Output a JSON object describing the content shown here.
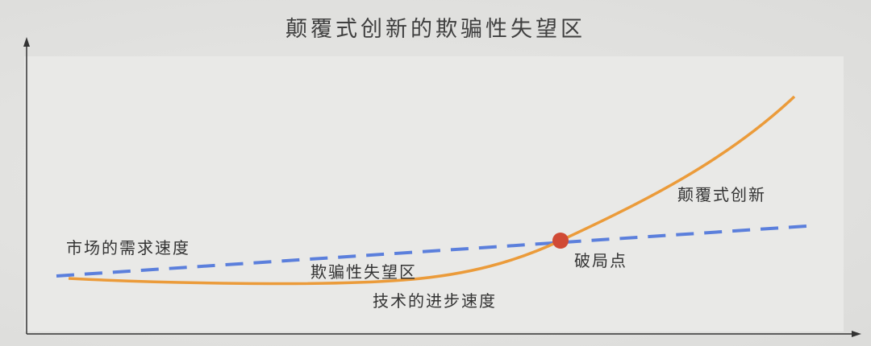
{
  "title": "颠覆式创新的欺骗性失望区",
  "labels": {
    "market_demand": "市场的需求速度",
    "disappointment_zone": "欺骗性失望区",
    "tech_progress": "技术的进步速度",
    "breakthrough_point": "破局点",
    "disruptive_innovation": "颠覆式创新"
  },
  "colors": {
    "market_demand_line": "#5b7fdc",
    "tech_progress_curve": "#eb9b3a",
    "breakthrough_point": "#d04a35",
    "axes": "#333333"
  }
}
